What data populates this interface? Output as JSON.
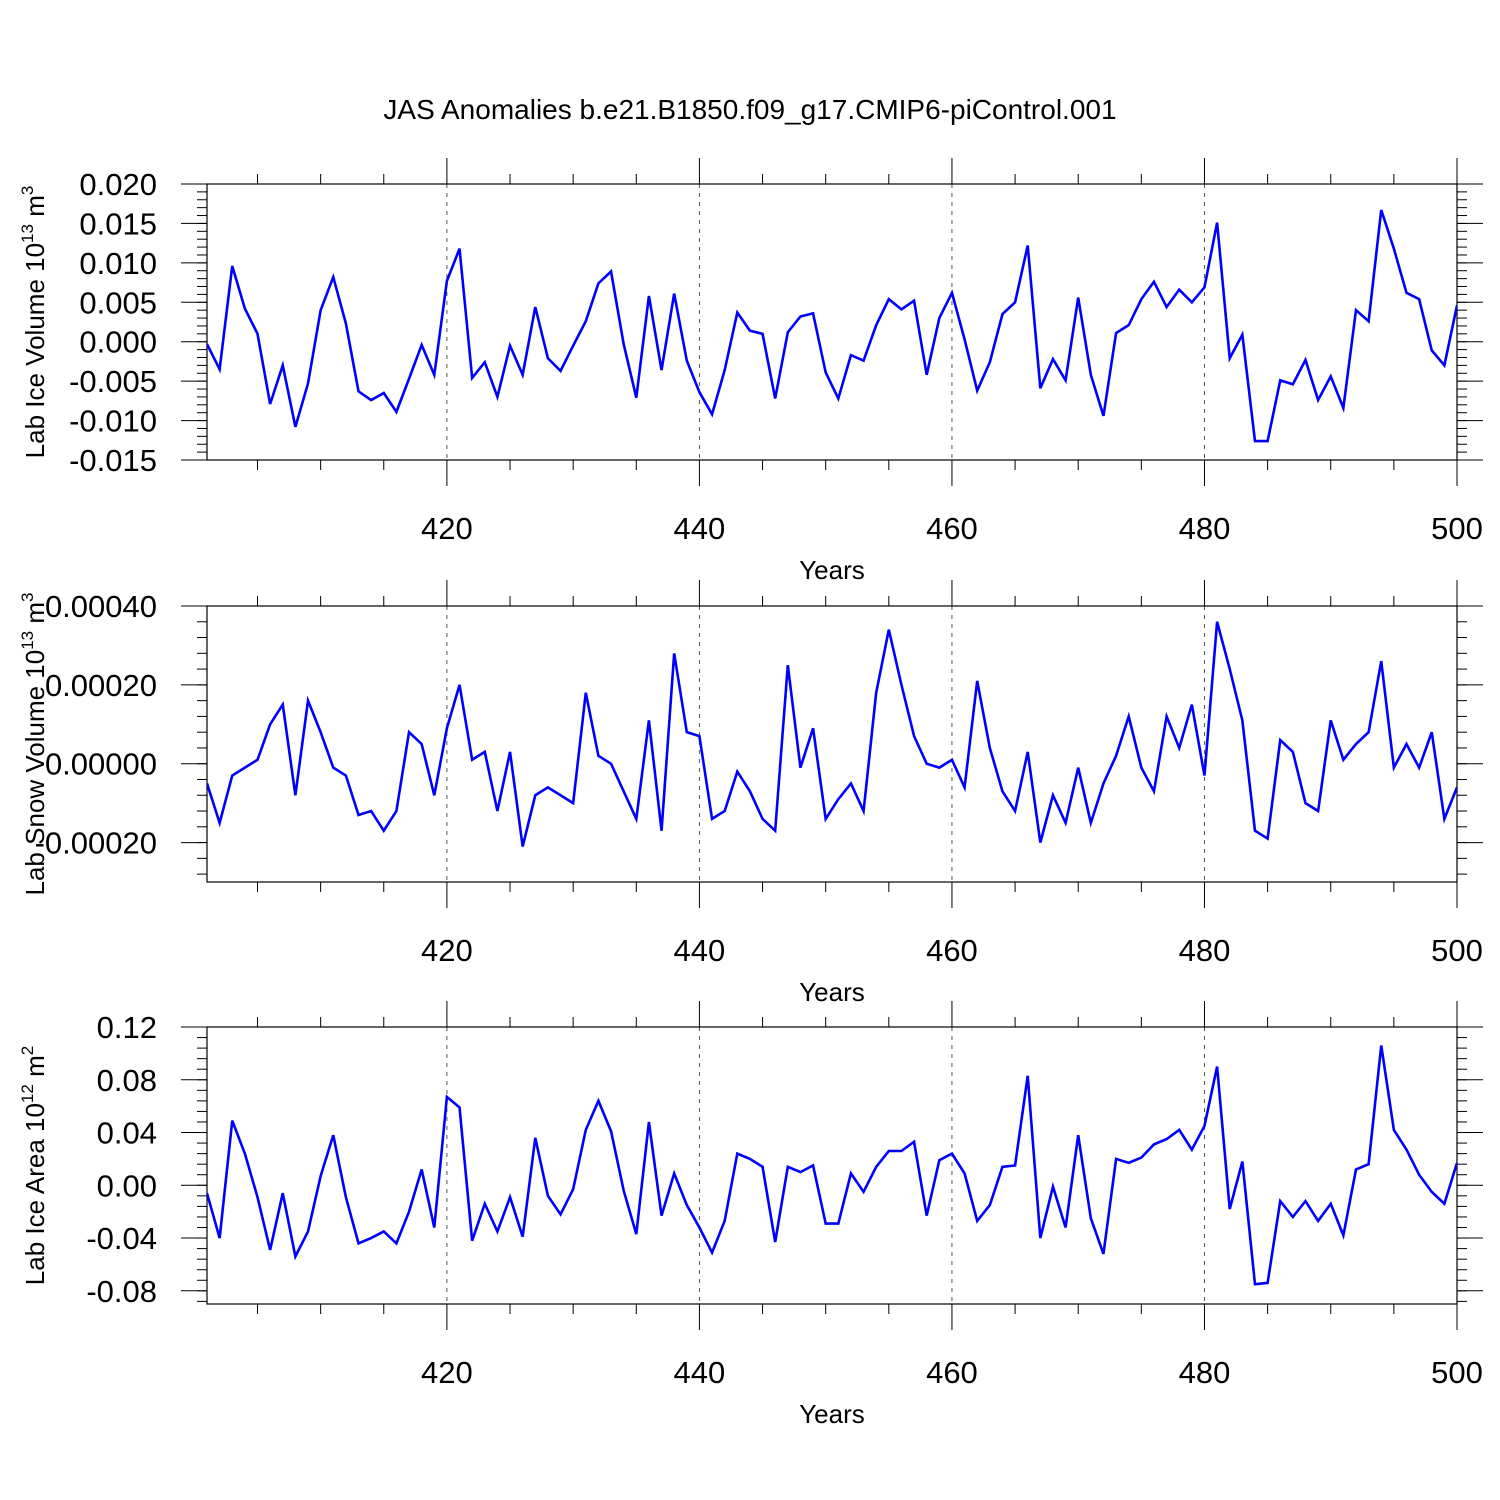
{
  "figure": {
    "title": "JAS Anomalies b.e21.B1850.f09_g17.CMIP6-piControl.001"
  },
  "colors": {
    "series": "#0000ff",
    "axes": "#000000",
    "gridlines": "#555555"
  },
  "chart_data": [
    {
      "type": "line",
      "title": "",
      "xlabel": "Years",
      "ylabel": "Lab Ice Volume 10",
      "ylabel_exponent": "13",
      "ylabel_unit": "m",
      "ylabel_unit_exponent": "3",
      "xlim": [
        401,
        500
      ],
      "ylim": [
        -0.015,
        0.02
      ],
      "xticks": [
        420,
        440,
        460,
        480,
        500
      ],
      "yticks": [
        -0.015,
        -0.01,
        -0.005,
        0.0,
        0.005,
        0.01,
        0.015,
        0.02
      ],
      "ytick_labels": [
        "-0.015",
        "-0.010",
        "-0.005",
        "0.000",
        "0.005",
        "0.010",
        "0.015",
        "0.020"
      ],
      "grid": "dashed vertical at major x ticks",
      "x_start": 401,
      "series": [
        {
          "values": [
            -0.0003,
            -0.0035,
            0.0096,
            0.0042,
            0.001,
            -0.0079,
            -0.003,
            -0.0108,
            -0.0053,
            0.004,
            0.0082,
            0.0023,
            -0.0063,
            -0.0074,
            -0.0065,
            -0.0089,
            -0.0047,
            -0.0004,
            -0.0042,
            0.0077,
            0.0118,
            -0.0046,
            -0.0026,
            -0.007,
            -0.0005,
            -0.0042,
            0.0044,
            -0.0021,
            -0.0037,
            -0.0005,
            0.0026,
            0.0074,
            0.0089,
            -0.0003,
            -0.0071,
            0.0058,
            -0.0036,
            0.0061,
            -0.0024,
            -0.0064,
            -0.0092,
            -0.0036,
            0.0037,
            0.0014,
            0.001,
            -0.0072,
            0.0012,
            0.0032,
            0.0036,
            -0.0039,
            -0.0072,
            -0.0017,
            -0.0024,
            0.0021,
            0.0054,
            0.0041,
            0.0052,
            -0.0042,
            0.003,
            0.0062,
            0.0003,
            -0.0062,
            -0.0026,
            0.0035,
            0.005,
            0.0122,
            -0.0059,
            -0.0022,
            -0.0049,
            0.0056,
            -0.0042,
            -0.0094,
            0.0011,
            0.0021,
            0.0054,
            0.0076,
            0.0044,
            0.0066,
            0.005,
            0.0069,
            0.0151,
            -0.0021,
            0.0009,
            -0.0126,
            -0.0126,
            -0.0049,
            -0.0054,
            -0.0023,
            -0.0074,
            -0.0044,
            -0.0084,
            0.004,
            0.0026,
            0.0167,
            0.0118,
            0.0062,
            0.0054,
            -0.0011,
            -0.003,
            0.0046
          ]
        }
      ]
    },
    {
      "type": "line",
      "title": "",
      "xlabel": "Years",
      "ylabel": "Lab Snow Volume 10",
      "ylabel_exponent": "13",
      "ylabel_unit": "m",
      "ylabel_unit_exponent": "3",
      "xlim": [
        401,
        500
      ],
      "ylim": [
        -0.0003,
        0.0004
      ],
      "xticks": [
        420,
        440,
        460,
        480,
        500
      ],
      "yticks": [
        -0.0002,
        0.0,
        0.0002,
        0.0004
      ],
      "ytick_labels": [
        "-0.00020",
        "0.00000",
        "0.00020",
        "0.00040"
      ],
      "grid": "dashed vertical at major x ticks",
      "x_start": 401,
      "series": [
        {
          "values": [
            -5e-05,
            -0.00015,
            -3e-05,
            -1e-05,
            1e-05,
            0.0001,
            0.00015,
            -8e-05,
            0.00016,
            8e-05,
            -1e-05,
            -3e-05,
            -0.00013,
            -0.00012,
            -0.00017,
            -0.00012,
            8e-05,
            5e-05,
            -8e-05,
            9e-05,
            0.0002,
            1e-05,
            3e-05,
            -0.00012,
            3e-05,
            -0.00021,
            -8e-05,
            -6e-05,
            -8e-05,
            -0.0001,
            0.00018,
            2e-05,
            0.0,
            -7e-05,
            -0.00014,
            0.00011,
            -0.00017,
            0.00028,
            8e-05,
            7e-05,
            -0.00014,
            -0.00012,
            -2e-05,
            -7e-05,
            -0.00014,
            -0.00017,
            0.00025,
            -1e-05,
            9e-05,
            -0.00014,
            -9e-05,
            -5e-05,
            -0.00012,
            0.00018,
            0.00034,
            0.0002,
            7e-05,
            0.0,
            -1e-05,
            1e-05,
            -6e-05,
            0.00021,
            4e-05,
            -7e-05,
            -0.00012,
            3e-05,
            -0.0002,
            -8e-05,
            -0.00015,
            -1e-05,
            -0.00015,
            -5e-05,
            2e-05,
            0.00012,
            -1e-05,
            -7e-05,
            0.00012,
            4e-05,
            0.00015,
            -3e-05,
            0.00036,
            0.00024,
            0.00011,
            -0.00017,
            -0.00019,
            6e-05,
            3e-05,
            -0.0001,
            -0.00012,
            0.00011,
            1e-05,
            5e-05,
            8e-05,
            0.00026,
            -1e-05,
            5e-05,
            -1e-05,
            8e-05,
            -0.00014,
            -6e-05
          ]
        }
      ]
    },
    {
      "type": "line",
      "title": "",
      "xlabel": "Years",
      "ylabel": "Lab Ice Area 10",
      "ylabel_exponent": "12",
      "ylabel_unit": "m",
      "ylabel_unit_exponent": "2",
      "xlim": [
        401,
        500
      ],
      "ylim": [
        -0.09,
        0.12
      ],
      "xticks": [
        420,
        440,
        460,
        480,
        500
      ],
      "yticks": [
        -0.08,
        -0.04,
        0.0,
        0.04,
        0.08,
        0.12
      ],
      "ytick_labels": [
        "-0.08",
        "-0.04",
        "0.00",
        "0.04",
        "0.08",
        "0.12"
      ],
      "grid": "dashed vertical at major x ticks",
      "x_start": 401,
      "series": [
        {
          "values": [
            -0.006,
            -0.04,
            0.049,
            0.024,
            -0.009,
            -0.049,
            -0.006,
            -0.054,
            -0.035,
            0.007,
            0.038,
            -0.009,
            -0.044,
            -0.04,
            -0.035,
            -0.044,
            -0.02,
            0.012,
            -0.032,
            0.067,
            0.059,
            -0.042,
            -0.014,
            -0.035,
            -0.009,
            -0.039,
            0.036,
            -0.008,
            -0.022,
            -0.003,
            0.042,
            0.064,
            0.041,
            -0.004,
            -0.037,
            0.048,
            -0.023,
            0.009,
            -0.015,
            -0.032,
            -0.051,
            -0.027,
            0.024,
            0.02,
            0.014,
            -0.043,
            0.014,
            0.01,
            0.015,
            -0.029,
            -0.029,
            0.009,
            -0.005,
            0.014,
            0.026,
            0.026,
            0.033,
            -0.023,
            0.019,
            0.024,
            0.009,
            -0.027,
            -0.015,
            0.014,
            0.015,
            0.083,
            -0.04,
            -0.001,
            -0.032,
            0.038,
            -0.025,
            -0.052,
            0.02,
            0.017,
            0.021,
            0.031,
            0.035,
            0.042,
            0.027,
            0.045,
            0.09,
            -0.018,
            0.018,
            -0.075,
            -0.074,
            -0.012,
            -0.024,
            -0.012,
            -0.027,
            -0.014,
            -0.038,
            0.012,
            0.016,
            0.106,
            0.042,
            0.027,
            0.008,
            -0.005,
            -0.014,
            0.017
          ]
        }
      ]
    }
  ]
}
